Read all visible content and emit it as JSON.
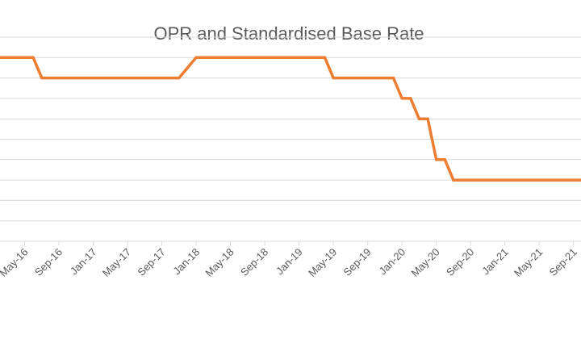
{
  "chart_data": {
    "type": "line",
    "title": "OPR and Standardised Base Rate",
    "xlabel": "",
    "ylabel": "",
    "x_start": "Jan-16",
    "x_end": "Nov-21",
    "x_tick_labels": [
      "May-16",
      "Sep-16",
      "Jan-17",
      "May-17",
      "Sep-17",
      "Jan-18",
      "May-18",
      "Sep-18",
      "Jan-19",
      "May-19",
      "Sep-19",
      "Jan-20",
      "May-20",
      "Sep-20",
      "Jan-21",
      "May-21",
      "Sep-21"
    ],
    "y_gridlines": 10,
    "grid": true,
    "legend": "none",
    "series": [
      {
        "color": "#ED7D31",
        "points": [
          [
            "Jan-16",
            9
          ],
          [
            "Jun-16",
            9
          ],
          [
            "Jul-16",
            8
          ],
          [
            "Nov-17",
            8
          ],
          [
            "Jan-18",
            9
          ],
          [
            "Apr-19",
            9
          ],
          [
            "May-19",
            8
          ],
          [
            "Dec-19",
            8
          ],
          [
            "Jan-20",
            7
          ],
          [
            "Feb-20",
            7
          ],
          [
            "Mar-20",
            6
          ],
          [
            "Apr-20",
            6
          ],
          [
            "May-20",
            4
          ],
          [
            "Jun-20",
            4
          ],
          [
            "Jul-20",
            3
          ],
          [
            "Nov-21",
            3
          ]
        ]
      }
    ]
  }
}
